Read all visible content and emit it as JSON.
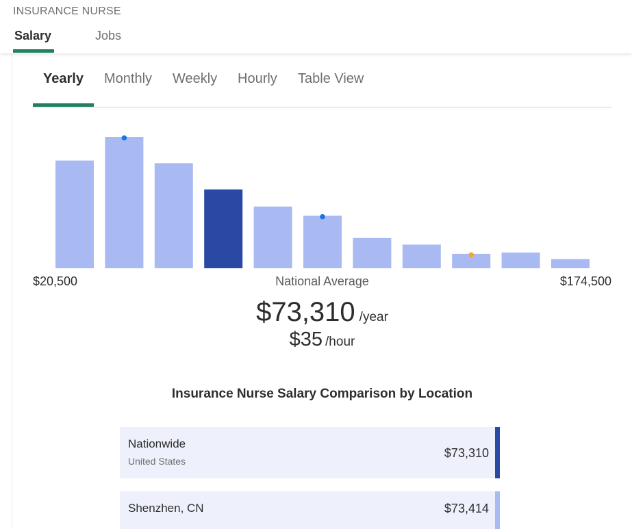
{
  "header": {
    "job_title": "INSURANCE NURSE",
    "tabs": [
      "Salary",
      "Jobs"
    ]
  },
  "subtabs": [
    "Yearly",
    "Monthly",
    "Weekly",
    "Hourly",
    "Table View"
  ],
  "colors": {
    "accent": "#1f8064",
    "bar": "#a9baf3",
    "bar_highlight": "#2a49a4",
    "marker_blue": "#1a73e8",
    "marker_orange": "#f4a43a"
  },
  "chart_data": {
    "type": "bar",
    "values": [
      82,
      100,
      80,
      60,
      47,
      40,
      23,
      18,
      11,
      12,
      7
    ],
    "highlight_index": 3,
    "markers": [
      {
        "bar": 1,
        "color": "blue"
      },
      {
        "bar": 5,
        "color": "blue"
      },
      {
        "bar": 8,
        "color": "orange"
      }
    ],
    "x_min_label": "$20,500",
    "x_max_label": "$174,500",
    "center_label": "National Average"
  },
  "national_average": {
    "yearly": "$73,310",
    "yearly_unit": "/year",
    "hourly": "$35",
    "hourly_unit": "/hour"
  },
  "comparison": {
    "title": "Insurance Nurse Salary Comparison by Location",
    "rows": [
      {
        "name": "Nationwide",
        "sub": "United States",
        "value": "$73,310",
        "bar_color": "#2a49a4"
      },
      {
        "name": "Shenzhen, CN",
        "sub": "",
        "value": "$73,414",
        "bar_color": "#a9baf3"
      }
    ]
  }
}
